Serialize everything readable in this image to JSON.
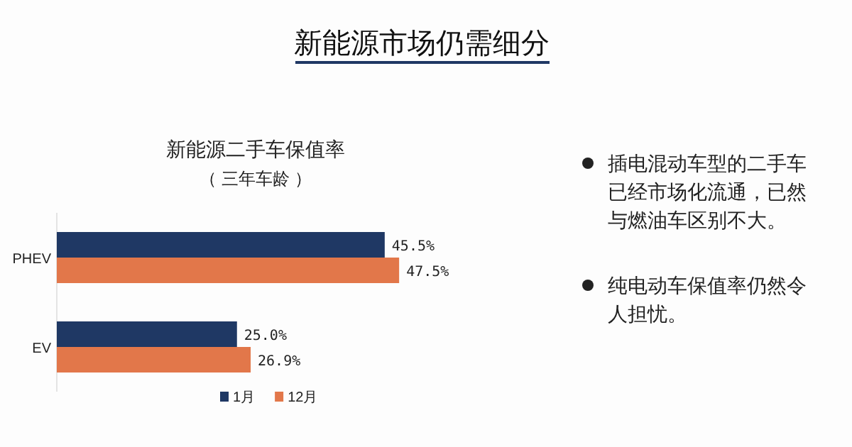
{
  "chart_data": {
    "type": "bar",
    "orientation": "horizontal",
    "title": "新能源二手车保值率",
    "subtitle": "（ 三年车龄 ）",
    "categories": [
      "PHEV",
      "EV"
    ],
    "series": [
      {
        "name": "1月",
        "color": "#1f3864",
        "values": [
          45.5,
          25.0
        ],
        "value_labels": [
          "45.5%",
          "25.0%"
        ]
      },
      {
        "name": "12月",
        "color": "#e2774a",
        "values": [
          47.5,
          26.9
        ],
        "value_labels": [
          "47.5%",
          "26.9%"
        ]
      }
    ],
    "legend": "bottom",
    "annotations": [
      "新能源市场仍需细分",
      "插电混动车型的二手车已经市场化流通，已然与燃油车区别不大。",
      "纯电动车保值率仍然令人担忧。"
    ]
  }
}
